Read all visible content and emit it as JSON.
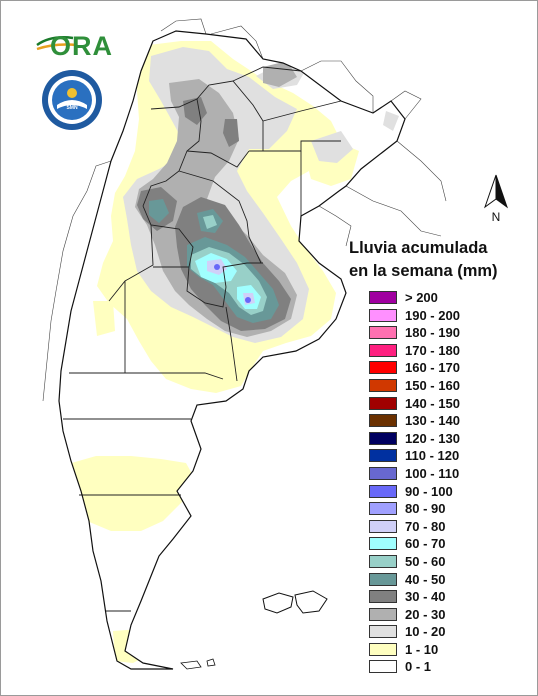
{
  "title_lines": [
    "Lluvia acumulada",
    "en la semana (mm)"
  ],
  "logo_text": "ORA",
  "seal_text": "SERVICIO METEOROLOGICO NACIONAL ARGENTINA",
  "north_label": "N",
  "legend": [
    {
      "label": "> 200",
      "color": "#a000a0"
    },
    {
      "label": "190 - 200",
      "color": "#ff90ff"
    },
    {
      "label": "180 - 190",
      "color": "#ff70b0"
    },
    {
      "label": "170 - 180",
      "color": "#ff2080"
    },
    {
      "label": "160 - 170",
      "color": "#ff0000"
    },
    {
      "label": "150 - 160",
      "color": "#d03800"
    },
    {
      "label": "140 - 150",
      "color": "#a00000"
    },
    {
      "label": "130 - 140",
      "color": "#6a3000"
    },
    {
      "label": "120 - 130",
      "color": "#000060"
    },
    {
      "label": "110 - 120",
      "color": "#0030a0"
    },
    {
      "label": "100 - 110",
      "color": "#6868d0"
    },
    {
      "label": "90 - 100",
      "color": "#6868f8"
    },
    {
      "label": "80 - 90",
      "color": "#a0a0ff"
    },
    {
      "label": "70 - 80",
      "color": "#d0d0f8"
    },
    {
      "label": "60 - 70",
      "color": "#a0ffff"
    },
    {
      "label": "50 - 60",
      "color": "#98d0c8"
    },
    {
      "label": "40 - 50",
      "color": "#689898"
    },
    {
      "label": "30 - 40",
      "color": "#808080"
    },
    {
      "label": "20 - 30",
      "color": "#b0b0b0"
    },
    {
      "label": "10 - 20",
      "color": "#e0e0e0"
    },
    {
      "label": "1 - 10",
      "color": "#ffffc0"
    },
    {
      "label": "0 - 1",
      "color": "#ffffff"
    }
  ]
}
